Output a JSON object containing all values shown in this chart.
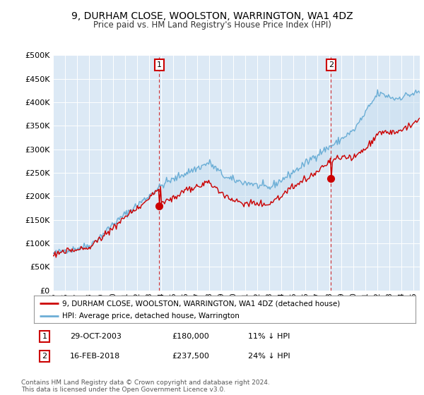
{
  "title": "9, DURHAM CLOSE, WOOLSTON, WARRINGTON, WA1 4DZ",
  "subtitle": "Price paid vs. HM Land Registry's House Price Index (HPI)",
  "ytick_values": [
    0,
    50000,
    100000,
    150000,
    200000,
    250000,
    300000,
    350000,
    400000,
    450000,
    500000
  ],
  "ylim": [
    0,
    500000
  ],
  "xlim_start": 1995.0,
  "xlim_end": 2025.5,
  "hpi_color": "#6baed6",
  "hpi_fill_color": "#c8dff0",
  "price_color": "#cc0000",
  "marker1_date": 2003.83,
  "marker1_value": 180000,
  "marker2_date": 2018.12,
  "marker2_value": 237500,
  "legend_line1": "9, DURHAM CLOSE, WOOLSTON, WARRINGTON, WA1 4DZ (detached house)",
  "legend_line2": "HPI: Average price, detached house, Warrington",
  "table_row1": [
    "1",
    "29-OCT-2003",
    "£180,000",
    "11% ↓ HPI"
  ],
  "table_row2": [
    "2",
    "16-FEB-2018",
    "£237,500",
    "24% ↓ HPI"
  ],
  "footer": "Contains HM Land Registry data © Crown copyright and database right 2024.\nThis data is licensed under the Open Government Licence v3.0.",
  "background_color": "#ffffff",
  "plot_bg_color": "#dce9f5"
}
